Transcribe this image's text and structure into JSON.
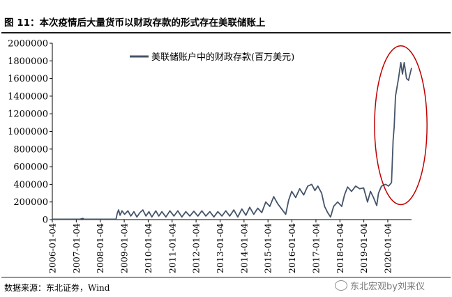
{
  "figure": {
    "title": "图 11：本次疫情后大量货币以财政存款的形式存在美联储账上",
    "source": "数据来源：东北证券，Wind",
    "watermark": "东北宏观by刘来仪",
    "watermark_icon": "wechat-icon"
  },
  "chart_data": {
    "type": "line",
    "title": "",
    "xlabel": "",
    "ylabel": "",
    "legend_position": "top-center",
    "grid": false,
    "ylim": [
      0,
      2000000
    ],
    "yticks": [
      "0",
      "200000",
      "400000",
      "600000",
      "800000",
      "1000000",
      "1200000",
      "1400000",
      "1600000",
      "1800000",
      "2000000"
    ],
    "xlim": [
      "2006-01-04",
      "2020-12-31"
    ],
    "xticks": [
      "2006-01-04",
      "2007-01-04",
      "2008-01-04",
      "2009-01-04",
      "2010-01-04",
      "2011-01-04",
      "2012-01-04",
      "2013-01-04",
      "2014-01-04",
      "2015-01-04",
      "2016-01-04",
      "2017-01-04",
      "2018-01-04",
      "2019-01-04",
      "2020-01-04"
    ],
    "series": [
      {
        "name": "美联储账户中的财政存款(百万美元)",
        "color": "#44546a",
        "points": [
          [
            "2006-01-04",
            5000
          ],
          [
            "2006-06-01",
            5000
          ],
          [
            "2006-12-01",
            5000
          ],
          [
            "2007-03-01",
            5000
          ],
          [
            "2007-04-15",
            14000
          ],
          [
            "2007-05-01",
            5000
          ],
          [
            "2007-12-01",
            5000
          ],
          [
            "2008-06-01",
            5000
          ],
          [
            "2008-09-01",
            5000
          ],
          [
            "2008-09-20",
            70000
          ],
          [
            "2008-10-10",
            110000
          ],
          [
            "2008-11-01",
            50000
          ],
          [
            "2008-12-01",
            100000
          ],
          [
            "2009-01-10",
            60000
          ],
          [
            "2009-03-01",
            100000
          ],
          [
            "2009-04-15",
            40000
          ],
          [
            "2009-06-01",
            90000
          ],
          [
            "2009-07-15",
            30000
          ],
          [
            "2009-09-01",
            80000
          ],
          [
            "2009-10-15",
            110000
          ],
          [
            "2009-12-01",
            40000
          ],
          [
            "2010-01-15",
            90000
          ],
          [
            "2010-03-01",
            30000
          ],
          [
            "2010-05-01",
            100000
          ],
          [
            "2010-06-15",
            40000
          ],
          [
            "2010-08-01",
            90000
          ],
          [
            "2010-10-01",
            30000
          ],
          [
            "2010-12-01",
            100000
          ],
          [
            "2011-02-01",
            40000
          ],
          [
            "2011-04-01",
            100000
          ],
          [
            "2011-06-01",
            30000
          ],
          [
            "2011-08-01",
            90000
          ],
          [
            "2011-10-01",
            40000
          ],
          [
            "2011-12-01",
            95000
          ],
          [
            "2012-02-01",
            40000
          ],
          [
            "2012-04-01",
            100000
          ],
          [
            "2012-06-01",
            40000
          ],
          [
            "2012-08-01",
            90000
          ],
          [
            "2012-10-01",
            30000
          ],
          [
            "2012-12-01",
            90000
          ],
          [
            "2013-02-01",
            40000
          ],
          [
            "2013-04-01",
            100000
          ],
          [
            "2013-06-01",
            40000
          ],
          [
            "2013-08-01",
            110000
          ],
          [
            "2013-10-01",
            30000
          ],
          [
            "2013-12-01",
            120000
          ],
          [
            "2014-02-01",
            50000
          ],
          [
            "2014-04-01",
            140000
          ],
          [
            "2014-06-01",
            60000
          ],
          [
            "2014-08-01",
            130000
          ],
          [
            "2014-10-01",
            80000
          ],
          [
            "2014-12-01",
            200000
          ],
          [
            "2015-02-01",
            150000
          ],
          [
            "2015-04-01",
            260000
          ],
          [
            "2015-06-01",
            180000
          ],
          [
            "2015-08-01",
            120000
          ],
          [
            "2015-10-01",
            60000
          ],
          [
            "2015-11-15",
            220000
          ],
          [
            "2016-01-01",
            320000
          ],
          [
            "2016-03-01",
            250000
          ],
          [
            "2016-05-01",
            350000
          ],
          [
            "2016-07-01",
            280000
          ],
          [
            "2016-09-01",
            380000
          ],
          [
            "2016-11-01",
            400000
          ],
          [
            "2016-12-20",
            330000
          ],
          [
            "2017-02-01",
            380000
          ],
          [
            "2017-04-01",
            300000
          ],
          [
            "2017-05-15",
            150000
          ],
          [
            "2017-07-01",
            80000
          ],
          [
            "2017-08-15",
            30000
          ],
          [
            "2017-10-01",
            150000
          ],
          [
            "2017-12-01",
            200000
          ],
          [
            "2018-02-01",
            150000
          ],
          [
            "2018-03-15",
            280000
          ],
          [
            "2018-05-01",
            370000
          ],
          [
            "2018-07-01",
            320000
          ],
          [
            "2018-09-01",
            380000
          ],
          [
            "2018-11-01",
            350000
          ],
          [
            "2019-01-01",
            360000
          ],
          [
            "2019-03-01",
            200000
          ],
          [
            "2019-04-15",
            320000
          ],
          [
            "2019-06-01",
            250000
          ],
          [
            "2019-07-20",
            160000
          ],
          [
            "2019-08-15",
            300000
          ],
          [
            "2019-10-01",
            380000
          ],
          [
            "2019-12-01",
            400000
          ],
          [
            "2020-01-15",
            380000
          ],
          [
            "2020-03-01",
            420000
          ],
          [
            "2020-03-25",
            900000
          ],
          [
            "2020-04-10",
            1050000
          ],
          [
            "2020-05-01",
            1400000
          ],
          [
            "2020-06-15",
            1600000
          ],
          [
            "2020-07-20",
            1780000
          ],
          [
            "2020-08-15",
            1650000
          ],
          [
            "2020-09-10",
            1780000
          ],
          [
            "2020-10-15",
            1600000
          ],
          [
            "2020-11-15",
            1580000
          ],
          [
            "2020-12-31",
            1720000
          ]
        ]
      }
    ],
    "annotations": [
      {
        "type": "ellipse",
        "color": "#c00000",
        "x_center": "2020-07-20",
        "y_center": 1070000,
        "x_halfwidth_days": 400,
        "y_halfwidth": 900000
      }
    ]
  }
}
